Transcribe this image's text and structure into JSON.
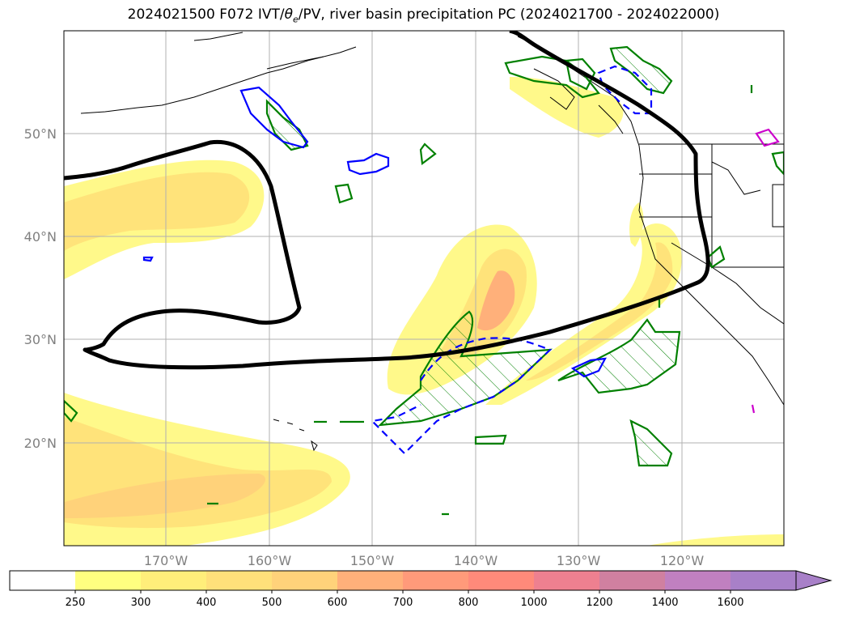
{
  "title": "2024021500 F072 IVT/θe/PV, river basin precipitation PC (2024021700 - 2024022000)",
  "title_parts": {
    "prefix": "2024021500 F072 IVT/",
    "theta": "θ",
    "sub": "e",
    "suffix": "/PV, river basin precipitation PC (2024021700 - 2024022000)"
  },
  "lat_labels": [
    "50°N",
    "40°N",
    "30°N",
    "20°N"
  ],
  "lon_labels": [
    "170°W",
    "160°W",
    "150°W",
    "140°W",
    "130°W",
    "120°W"
  ],
  "colorbar": {
    "ticks": [
      "250",
      "300",
      "400",
      "500",
      "600",
      "700",
      "800",
      "1000",
      "1200",
      "1400",
      "1600"
    ],
    "colors": [
      "#ffffff",
      "#ffff80",
      "#ffee7a",
      "#ffe07a",
      "#ffd27a",
      "#ffb07a",
      "#ff9a7a",
      "#ff8a7a",
      "#ee8090",
      "#d080a0",
      "#c080c0",
      "#a880c8"
    ]
  },
  "colors": {
    "ivt_low": "#fff98a",
    "ivt_mid": "#ffe37a",
    "ivt_high": "#ffb07a",
    "pv_contour": "#000000",
    "precip_green": "#008000",
    "precip_blue": "#0000ff",
    "precip_magenta": "#cc00cc",
    "coast": "#000000",
    "grid": "#b0b0b0"
  }
}
